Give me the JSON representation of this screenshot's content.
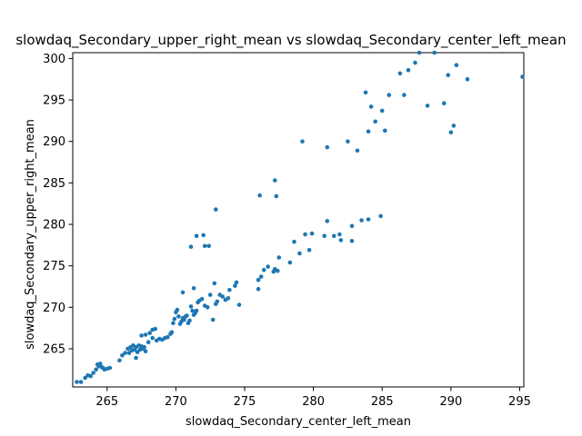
{
  "chart_data": {
    "type": "scatter",
    "title": "slowdaq_Secondary_upper_right_mean vs slowdaq_Secondary_center_left_mean",
    "xlabel": "slowdaq_Secondary_center_left_mean",
    "ylabel": "slowdaq_Secondary_upper_right_mean",
    "xlim": [
      262.5,
      295.3
    ],
    "ylim": [
      260.4,
      300.7
    ],
    "xticks": [
      265,
      270,
      275,
      280,
      285,
      290,
      295
    ],
    "yticks": [
      265,
      270,
      275,
      280,
      285,
      290,
      295,
      300
    ],
    "grid": false,
    "marker_color": "#1f77b4",
    "points": [
      [
        262.8,
        261.0
      ],
      [
        263.1,
        261.0
      ],
      [
        263.4,
        261.5
      ],
      [
        263.6,
        261.8
      ],
      [
        263.8,
        261.7
      ],
      [
        264.0,
        262.1
      ],
      [
        264.2,
        262.5
      ],
      [
        264.3,
        263.1
      ],
      [
        264.4,
        262.9
      ],
      [
        264.5,
        263.2
      ],
      [
        264.6,
        262.8
      ],
      [
        264.7,
        262.7
      ],
      [
        264.8,
        262.5
      ],
      [
        265.0,
        262.6
      ],
      [
        265.2,
        262.7
      ],
      [
        265.9,
        263.6
      ],
      [
        266.1,
        264.2
      ],
      [
        266.3,
        264.5
      ],
      [
        266.5,
        265.0
      ],
      [
        266.6,
        264.5
      ],
      [
        266.7,
        265.2
      ],
      [
        266.8,
        264.8
      ],
      [
        266.9,
        265.4
      ],
      [
        267.0,
        264.9
      ],
      [
        267.1,
        265.2
      ],
      [
        267.1,
        263.9
      ],
      [
        267.2,
        264.6
      ],
      [
        267.3,
        265.4
      ],
      [
        267.4,
        264.9
      ],
      [
        267.5,
        265.3
      ],
      [
        267.6,
        265.0
      ],
      [
        267.7,
        265.2
      ],
      [
        267.8,
        264.7
      ],
      [
        268.0,
        265.8
      ],
      [
        267.5,
        266.6
      ],
      [
        267.8,
        266.7
      ],
      [
        268.1,
        266.9
      ],
      [
        268.3,
        267.3
      ],
      [
        268.5,
        267.4
      ],
      [
        268.3,
        266.3
      ],
      [
        268.6,
        266.0
      ],
      [
        268.8,
        266.2
      ],
      [
        269.0,
        266.1
      ],
      [
        269.2,
        266.3
      ],
      [
        269.4,
        266.4
      ],
      [
        269.6,
        266.8
      ],
      [
        269.7,
        267.0
      ],
      [
        269.8,
        268.1
      ],
      [
        269.9,
        268.6
      ],
      [
        270.0,
        269.4
      ],
      [
        270.1,
        269.7
      ],
      [
        270.2,
        268.9
      ],
      [
        270.3,
        268.0
      ],
      [
        270.4,
        268.3
      ],
      [
        270.5,
        268.7
      ],
      [
        270.6,
        268.5
      ],
      [
        270.7,
        268.9
      ],
      [
        270.8,
        269.0
      ],
      [
        270.9,
        268.1
      ],
      [
        271.0,
        268.4
      ],
      [
        271.1,
        270.1
      ],
      [
        271.2,
        269.6
      ],
      [
        271.3,
        269.1
      ],
      [
        271.4,
        269.3
      ],
      [
        271.5,
        269.6
      ],
      [
        271.6,
        270.6
      ],
      [
        271.7,
        270.8
      ],
      [
        271.9,
        271.0
      ],
      [
        272.1,
        270.2
      ],
      [
        272.3,
        270.0
      ],
      [
        272.5,
        271.5
      ],
      [
        272.7,
        268.5
      ],
      [
        272.9,
        270.4
      ],
      [
        273.0,
        270.7
      ],
      [
        273.2,
        271.5
      ],
      [
        273.4,
        271.3
      ],
      [
        273.6,
        270.9
      ],
      [
        273.8,
        271.1
      ],
      [
        270.5,
        271.8
      ],
      [
        271.3,
        272.3
      ],
      [
        272.8,
        272.9
      ],
      [
        274.3,
        272.6
      ],
      [
        274.4,
        273.0
      ],
      [
        274.6,
        270.3
      ],
      [
        273.9,
        272.1
      ],
      [
        276.0,
        273.3
      ],
      [
        276.2,
        273.7
      ],
      [
        276.0,
        272.2
      ],
      [
        276.4,
        274.5
      ],
      [
        276.7,
        274.9
      ],
      [
        277.1,
        274.3
      ],
      [
        277.2,
        274.6
      ],
      [
        277.4,
        274.4
      ],
      [
        277.5,
        276.0
      ],
      [
        278.3,
        275.4
      ],
      [
        278.6,
        277.9
      ],
      [
        279.0,
        276.5
      ],
      [
        279.4,
        278.8
      ],
      [
        279.7,
        276.9
      ],
      [
        279.9,
        278.9
      ],
      [
        280.8,
        278.6
      ],
      [
        281.0,
        280.4
      ],
      [
        281.5,
        278.6
      ],
      [
        281.9,
        278.8
      ],
      [
        282.0,
        278.1
      ],
      [
        282.8,
        278.0
      ],
      [
        282.8,
        279.8
      ],
      [
        283.5,
        280.5
      ],
      [
        284.0,
        280.6
      ],
      [
        284.9,
        281.0
      ],
      [
        271.1,
        277.3
      ],
      [
        271.5,
        278.6
      ],
      [
        272.0,
        278.7
      ],
      [
        272.1,
        277.4
      ],
      [
        272.4,
        277.4
      ],
      [
        272.9,
        281.8
      ],
      [
        276.1,
        283.5
      ],
      [
        277.2,
        285.3
      ],
      [
        277.3,
        283.4
      ],
      [
        279.2,
        290.0
      ],
      [
        281.0,
        289.3
      ],
      [
        282.5,
        290.0
      ],
      [
        283.2,
        288.9
      ],
      [
        283.8,
        295.9
      ],
      [
        284.0,
        291.2
      ],
      [
        284.2,
        294.2
      ],
      [
        284.5,
        292.4
      ],
      [
        285.0,
        293.7
      ],
      [
        285.2,
        291.3
      ],
      [
        285.5,
        295.6
      ],
      [
        286.3,
        298.2
      ],
      [
        286.6,
        295.6
      ],
      [
        286.9,
        298.6
      ],
      [
        287.4,
        299.5
      ],
      [
        287.7,
        300.7
      ],
      [
        288.3,
        294.3
      ],
      [
        288.8,
        300.7
      ],
      [
        289.5,
        294.6
      ],
      [
        289.8,
        298.0
      ],
      [
        290.0,
        291.1
      ],
      [
        290.2,
        291.9
      ],
      [
        290.4,
        299.2
      ],
      [
        291.2,
        297.5
      ],
      [
        295.2,
        297.8
      ]
    ]
  }
}
